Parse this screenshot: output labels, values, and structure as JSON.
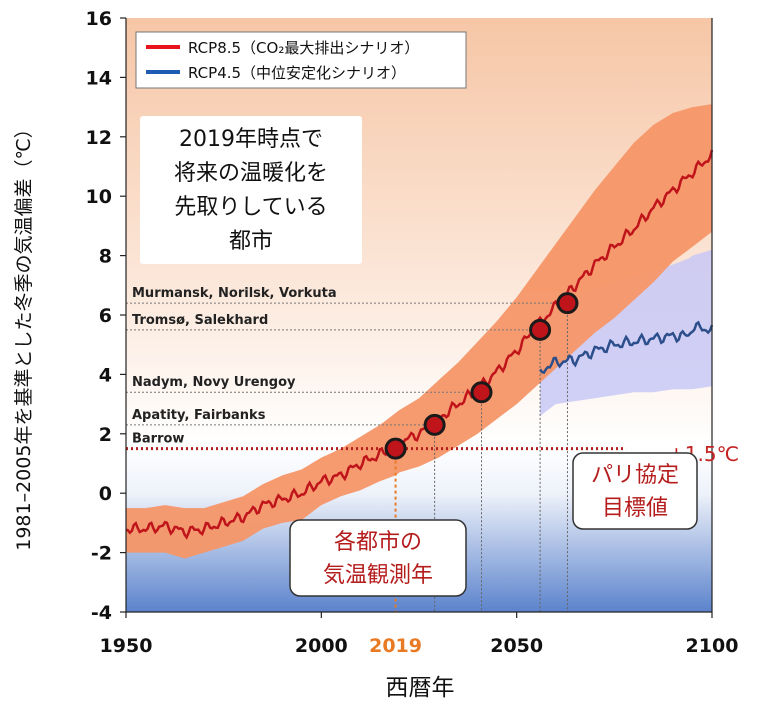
{
  "chart_data": {
    "type": "line",
    "xlabel": "西暦年",
    "ylabel": "1981–2005年を基準とした冬季の気温偏差（℃）",
    "xlim": [
      1950,
      2100
    ],
    "ylim": [
      -4,
      16
    ],
    "x_ticks": [
      "1950",
      "2000",
      "2050",
      "2100"
    ],
    "x_tick_highlight": "2019",
    "y_ticks": [
      "-4",
      "-2",
      "0",
      "2",
      "4",
      "6",
      "8",
      "10",
      "12",
      "14",
      "16"
    ],
    "legend": [
      {
        "label": "RCP8.5（CO₂最大排出シナリオ）",
        "color": "#e8141b"
      },
      {
        "label": "RCP4.5（中位安定化シナリオ）",
        "color": "#1f5db5"
      }
    ],
    "series": [
      {
        "name": "RCP8.5（CO₂最大排出シナリオ）",
        "color": "#c0141b",
        "x": [
          1950,
          1955,
          1960,
          1965,
          1970,
          1975,
          1980,
          1985,
          1990,
          1995,
          2000,
          2005,
          2010,
          2015,
          2019,
          2020,
          2025,
          2030,
          2035,
          2040,
          2045,
          2050,
          2055,
          2060,
          2065,
          2070,
          2075,
          2080,
          2085,
          2090,
          2095,
          2100
        ],
        "y": [
          -1.2,
          -1.2,
          -1.1,
          -1.3,
          -1.2,
          -1.0,
          -0.8,
          -0.4,
          -0.2,
          0.0,
          0.4,
          0.6,
          1.0,
          1.3,
          1.6,
          1.7,
          2.0,
          2.5,
          3.0,
          3.5,
          4.1,
          4.8,
          5.6,
          6.3,
          7.0,
          7.7,
          8.3,
          8.9,
          9.6,
          10.2,
          10.8,
          11.4
        ],
        "band_low": [
          -2.0,
          -2.0,
          -2.0,
          -2.2,
          -2.0,
          -1.8,
          -1.6,
          -1.2,
          -1.0,
          -0.9,
          -0.4,
          -0.1,
          0.1,
          0.4,
          0.6,
          0.7,
          0.9,
          1.2,
          1.6,
          2.0,
          2.5,
          3.0,
          3.6,
          4.2,
          4.8,
          5.4,
          5.9,
          6.5,
          7.1,
          7.8,
          8.3,
          8.8
        ],
        "band_high": [
          -0.5,
          -0.5,
          -0.4,
          -0.5,
          -0.5,
          -0.3,
          -0.1,
          0.3,
          0.6,
          0.8,
          1.2,
          1.5,
          1.9,
          2.3,
          2.7,
          2.8,
          3.2,
          3.8,
          4.4,
          5.1,
          5.8,
          6.6,
          7.5,
          8.4,
          9.3,
          10.2,
          11.0,
          11.8,
          12.4,
          12.8,
          13.0,
          13.1
        ]
      },
      {
        "name": "RCP4.5（中位安定化シナリオ）",
        "color": "#2c4f8c",
        "x": [
          2056,
          2058,
          2060,
          2065,
          2070,
          2075,
          2080,
          2085,
          2090,
          2094,
          2095,
          2100
        ],
        "y": [
          4.0,
          4.3,
          4.4,
          4.5,
          4.8,
          5.0,
          5.1,
          5.2,
          5.3,
          5.3,
          5.6,
          5.5
        ],
        "band_low": [
          2.6,
          2.8,
          3.0,
          3.1,
          3.2,
          3.3,
          3.4,
          3.4,
          3.5,
          3.5,
          3.5,
          3.6
        ],
        "band_high": [
          5.8,
          6.2,
          6.5,
          6.7,
          6.9,
          7.1,
          7.3,
          7.5,
          7.7,
          7.9,
          8.0,
          8.2
        ]
      }
    ],
    "thresholds": [
      {
        "label": "Murmansk, Norilsk, Vorkuta",
        "y": 6.4,
        "x": 2063
      },
      {
        "label": "Tromsø, Salekhard",
        "y": 5.5,
        "x": 2056
      },
      {
        "label": "Nadym, Novy Urengoy",
        "y": 3.4,
        "x": 2041
      },
      {
        "label": "Apatity, Fairbanks",
        "y": 2.3,
        "x": 2029
      },
      {
        "label": "Barrow",
        "y": 1.5,
        "x": 2019
      }
    ],
    "paris_line": {
      "y": 1.5,
      "label": "+1.5℃"
    },
    "annotations": {
      "box_top": [
        "2019年時点で",
        "将来の温暖化を",
        "先取りしている",
        "都市"
      ],
      "box_observe": [
        "各都市の",
        "気温観測年"
      ],
      "box_paris": [
        "パリ協定",
        "目標値"
      ]
    },
    "colors": {
      "rcp85_line": "#c0141b",
      "rcp85_band": "#f59668",
      "rcp45_line": "#2c4f8c",
      "rcp45_band": "#c8c8f6",
      "marker": "#c0141b",
      "paris": "#b51c1c",
      "highlight_tick": "#e87a24"
    }
  }
}
